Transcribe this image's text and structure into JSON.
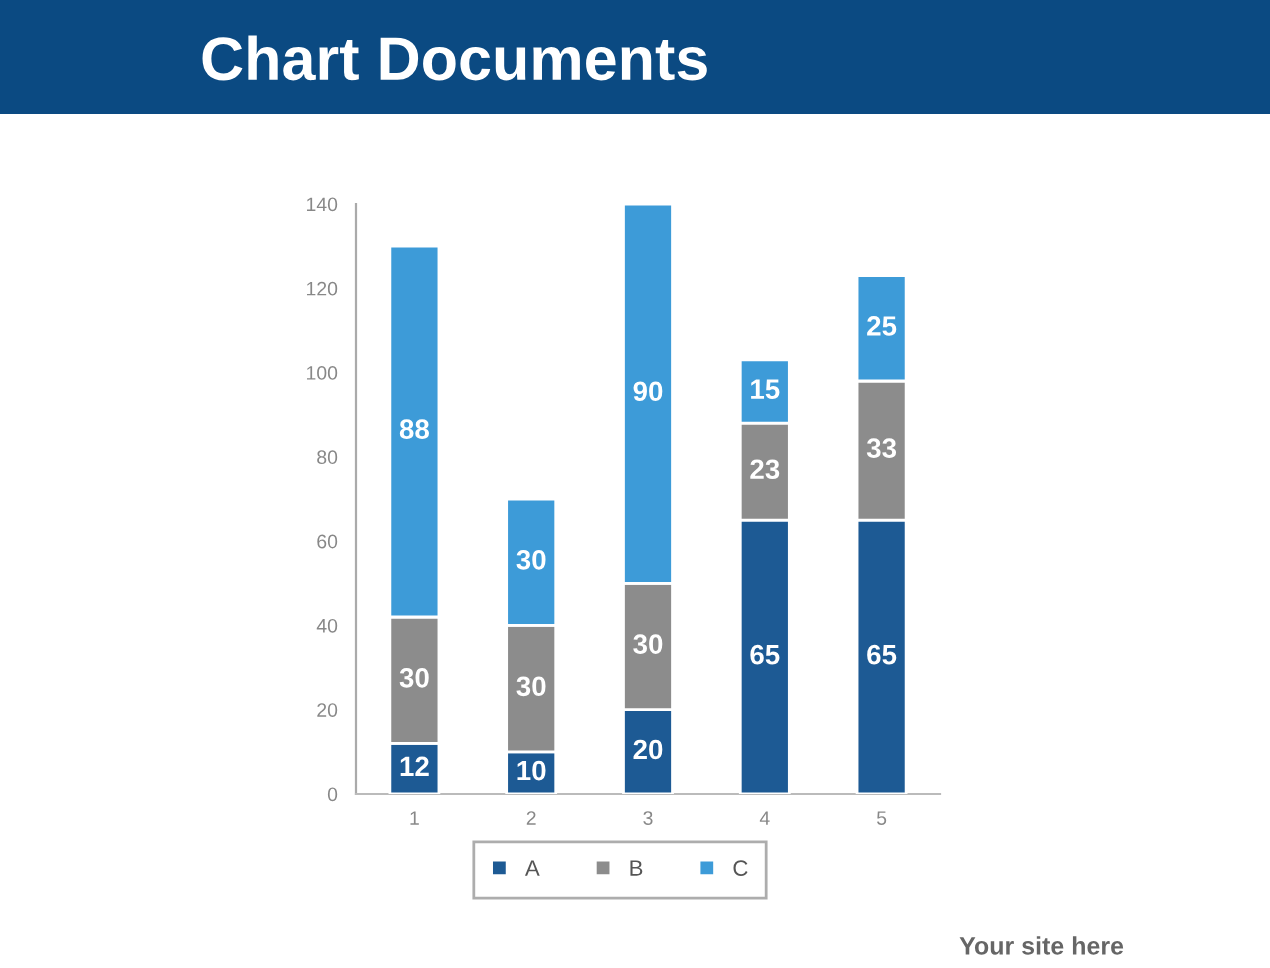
{
  "chart_data": {
    "type": "bar",
    "title": "Chart Documents",
    "categories": [
      "1",
      "2",
      "3",
      "4",
      "5"
    ],
    "series": [
      {
        "name": "A",
        "color": "#1d5a94",
        "values": [
          12,
          10,
          20,
          65,
          65
        ]
      },
      {
        "name": "B",
        "color": "#8c8c8c",
        "values": [
          30,
          30,
          30,
          23,
          33
        ]
      },
      {
        "name": "C",
        "color": "#3d9bd8",
        "values": [
          88,
          30,
          90,
          15,
          25
        ]
      }
    ],
    "stacked": true,
    "ylim": [
      0,
      140
    ],
    "yticks": [
      0,
      20,
      40,
      60,
      80,
      100,
      120,
      140
    ],
    "data_labels": true,
    "grid": false,
    "legend": "bottom",
    "annotations": [
      "Your site here"
    ]
  }
}
